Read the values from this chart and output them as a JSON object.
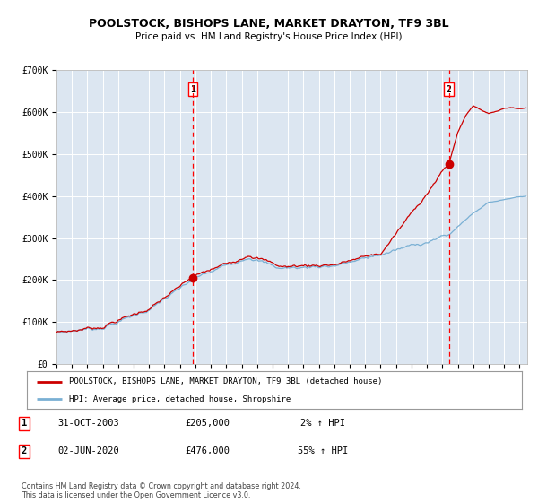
{
  "title": "POOLSTOCK, BISHOPS LANE, MARKET DRAYTON, TF9 3BL",
  "subtitle": "Price paid vs. HM Land Registry's House Price Index (HPI)",
  "bg_color": "#dce6f1",
  "outer_bg_color": "#ffffff",
  "red_line_color": "#cc0000",
  "blue_line_color": "#7ab0d4",
  "grid_color": "#ffffff",
  "sale1_date": 2003.83,
  "sale1_price": 205000,
  "sale2_date": 2020.42,
  "sale2_price": 476000,
  "xmin": 1995,
  "xmax": 2025.5,
  "ymin": 0,
  "ymax": 700000,
  "yticks": [
    0,
    100000,
    200000,
    300000,
    400000,
    500000,
    600000,
    700000
  ],
  "legend_line1": "POOLSTOCK, BISHOPS LANE, MARKET DRAYTON, TF9 3BL (detached house)",
  "legend_line2": "HPI: Average price, detached house, Shropshire",
  "footer": "Contains HM Land Registry data © Crown copyright and database right 2024.\nThis data is licensed under the Open Government Licence v3.0.",
  "annotation1_date_str": "31-OCT-2003",
  "annotation1_price_str": "£205,000",
  "annotation1_hpi_str": "2% ↑ HPI",
  "annotation2_date_str": "02-JUN-2020",
  "annotation2_price_str": "£476,000",
  "annotation2_hpi_str": "55% ↑ HPI"
}
